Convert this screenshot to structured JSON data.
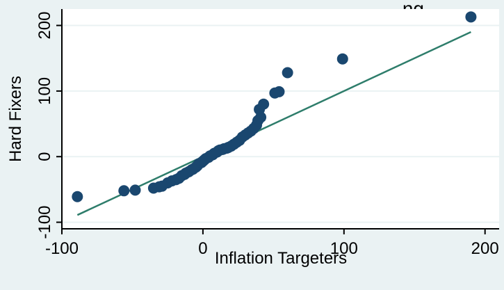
{
  "chart_data": {
    "type": "scatter",
    "title": "...ng",
    "xlabel": "Inflation Targeters",
    "ylabel": "Hard Fixers",
    "xlim": [
      -100,
      210
    ],
    "ylim": [
      -110,
      225
    ],
    "x_ticks": [
      -100,
      0,
      100,
      200
    ],
    "y_ticks": [
      -100,
      0,
      100,
      200
    ],
    "x_tick_labels": [
      "-100",
      "0",
      "100",
      "200"
    ],
    "y_tick_labels": [
      "-100",
      "0",
      "100",
      "200"
    ],
    "grid": "horizontal",
    "legend": "none",
    "colors": {
      "background": "#eaf2f3",
      "plot_background": "#ffffff",
      "grid": "#eaf2f3",
      "points": "#1a476f",
      "reference_line": "#2e7d6b"
    },
    "series": [
      {
        "points": [
          [
            -89,
            -61
          ],
          [
            -56,
            -52
          ],
          [
            -48,
            -51
          ],
          [
            -35,
            -48
          ],
          [
            -31,
            -46
          ],
          [
            -29,
            -45
          ],
          [
            -25,
            -40
          ],
          [
            -22,
            -37
          ],
          [
            -19,
            -35
          ],
          [
            -17,
            -33
          ],
          [
            -15,
            -29
          ],
          [
            -13,
            -27
          ],
          [
            -12,
            -25
          ],
          [
            -10,
            -23
          ],
          [
            -8,
            -20
          ],
          [
            -7,
            -19
          ],
          [
            -5,
            -16
          ],
          [
            -4,
            -14
          ],
          [
            -3,
            -11
          ],
          [
            -1,
            -9
          ],
          [
            0,
            -7
          ],
          [
            1,
            -5
          ],
          [
            2,
            -3
          ],
          [
            4,
            -1
          ],
          [
            5,
            1
          ],
          [
            7,
            3
          ],
          [
            8,
            5
          ],
          [
            10,
            7
          ],
          [
            11,
            9
          ],
          [
            12,
            10
          ],
          [
            14,
            11
          ],
          [
            15,
            12
          ],
          [
            17,
            13
          ],
          [
            18,
            14
          ],
          [
            20,
            16
          ],
          [
            22,
            19
          ],
          [
            24,
            22
          ],
          [
            26,
            25
          ],
          [
            28,
            30
          ],
          [
            30,
            33
          ],
          [
            32,
            36
          ],
          [
            34,
            39
          ],
          [
            36,
            43
          ],
          [
            38,
            48
          ],
          [
            39,
            55
          ],
          [
            41,
            60
          ],
          [
            40,
            72
          ],
          [
            43,
            80
          ],
          [
            51,
            97
          ],
          [
            54,
            99
          ],
          [
            60,
            128
          ],
          [
            99,
            149
          ],
          [
            190,
            213
          ]
        ]
      }
    ],
    "reference_line": {
      "x": [
        -89,
        190
      ],
      "y": [
        -89,
        190
      ]
    }
  }
}
